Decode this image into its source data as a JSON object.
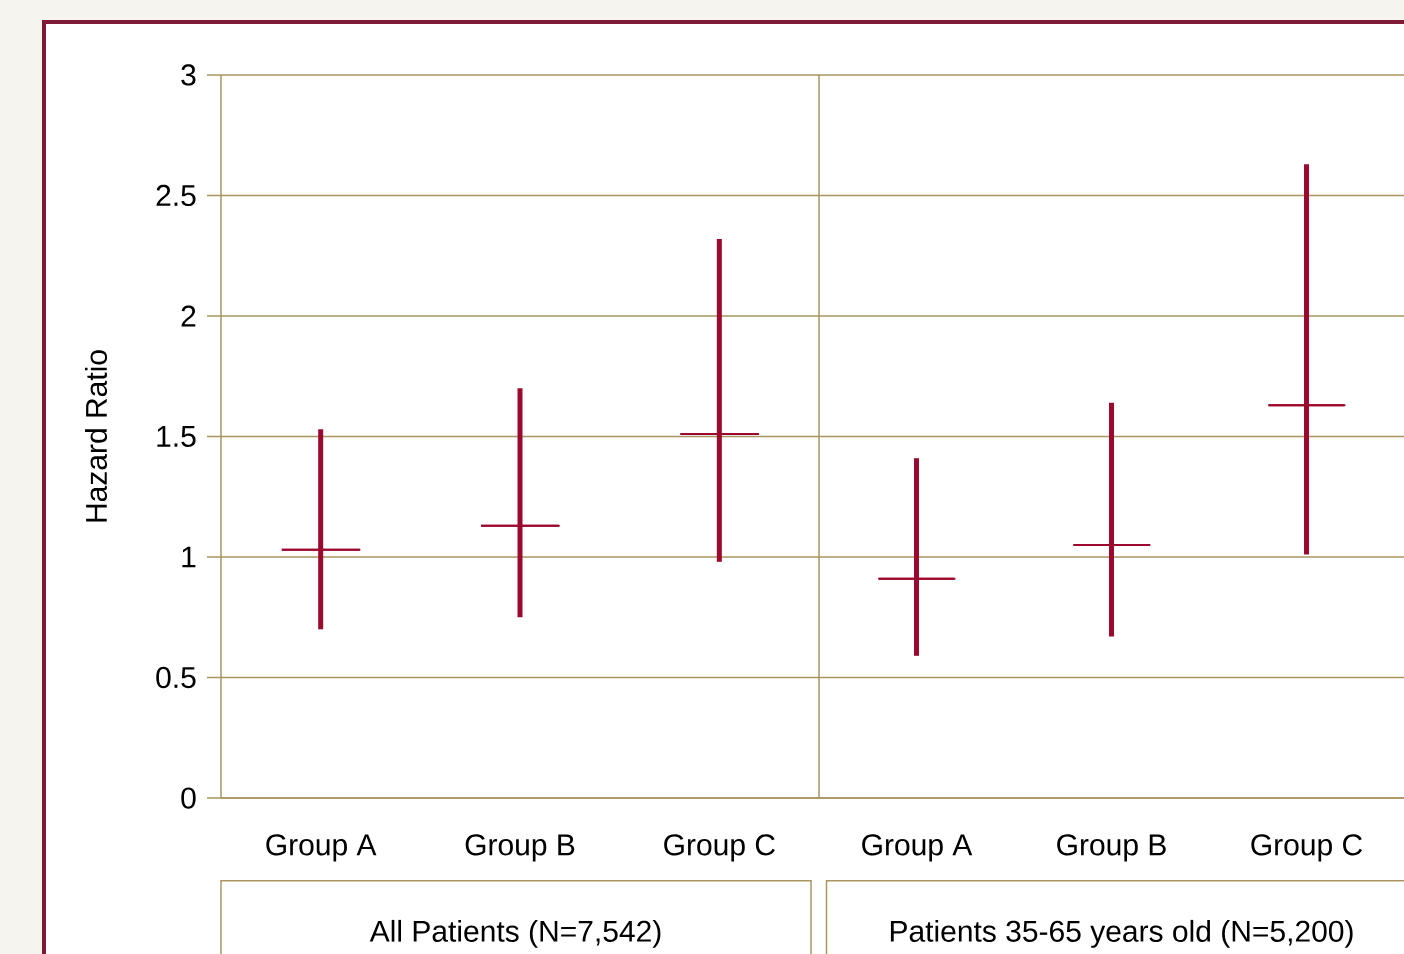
{
  "chart_data": [
    {
      "type": "box",
      "categories": [
        "Group A",
        "Group B",
        "Group C"
      ],
      "color": "#9b0a2e",
      "xlabel": "All Patients (N=7,542)",
      "ylabel": "Hazard Ratio",
      "ylim": [
        0,
        3
      ],
      "yticks": [
        0,
        0.5,
        1,
        1.5,
        2,
        2.5,
        3
      ],
      "grid": "y",
      "boxes": [
        {
          "low": 0.7,
          "q1": 1.03,
          "median": 1.03,
          "q3": 1.03,
          "high": 1.53
        },
        {
          "low": 0.75,
          "q1": 1.13,
          "median": 1.13,
          "q3": 1.13,
          "high": 1.7
        },
        {
          "low": 0.98,
          "q1": 1.51,
          "median": 1.51,
          "q3": 1.51,
          "high": 2.32
        }
      ]
    },
    {
      "type": "box",
      "categories": [
        "Group A",
        "Group B",
        "Group C"
      ],
      "color": "#9b0a2e",
      "xlabel": "Patients 35-65 years old (N=5,200)",
      "ylim": [
        0,
        3
      ],
      "yticks": [
        0,
        0.5,
        1,
        1.5,
        2,
        2.5,
        3
      ],
      "grid": "y",
      "tick_labels": "x",
      "boxes": [
        {
          "low": 0.59,
          "q1": 0.91,
          "median": 0.91,
          "q3": 0.91,
          "high": 1.41
        },
        {
          "low": 0.67,
          "q1": 1.05,
          "median": 1.05,
          "q3": 1.05,
          "high": 1.64
        },
        {
          "low": 1.01,
          "q1": 1.63,
          "median": 1.63,
          "q3": 1.63,
          "high": 2.63
        }
      ]
    }
  ]
}
